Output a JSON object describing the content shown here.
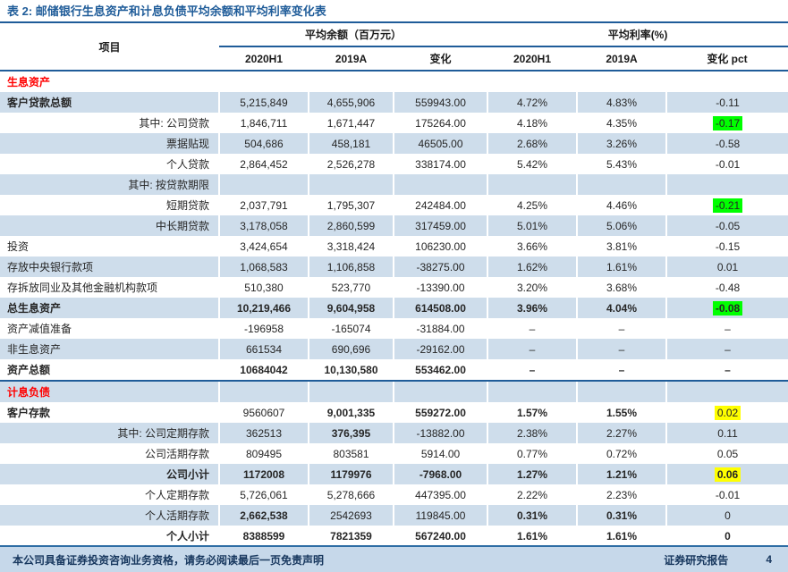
{
  "title": "表 2: 邮储银行生息资产和计息负债平均余额和平均利率变化表",
  "colors": {
    "accent_blue": "#1F5C99",
    "stripe": "#CEDDEB",
    "section_red": "#FF0000",
    "highlight_green": "#00FF00",
    "highlight_yellow": "#FFFF00",
    "footer_bg": "#C6D8EA",
    "footer_text": "#17375E"
  },
  "header": {
    "item_col": "项目",
    "groups": [
      {
        "label": "平均余额（百万元）",
        "cols": [
          "2020H1",
          "2019A",
          "变化"
        ]
      },
      {
        "label": "平均利率(%)",
        "cols": [
          "2020H1",
          "2019A",
          "变化 pct"
        ]
      }
    ]
  },
  "rows": [
    {
      "type": "section",
      "label": "生息资产",
      "align": "left",
      "label_bold": true,
      "cells": [
        {
          "v": ""
        },
        {
          "v": ""
        },
        {
          "v": ""
        },
        {
          "v": ""
        },
        {
          "v": ""
        },
        {
          "v": ""
        }
      ]
    },
    {
      "type": "data",
      "label": "客户贷款总额",
      "align": "left",
      "label_bold": true,
      "cells": [
        {
          "v": "5,215,849"
        },
        {
          "v": "4,655,906"
        },
        {
          "v": "559943.00"
        },
        {
          "v": "4.72%"
        },
        {
          "v": "4.83%"
        },
        {
          "v": "-0.11"
        }
      ]
    },
    {
      "type": "data",
      "label": "其中: 公司贷款",
      "align": "right",
      "label_bold": false,
      "cells": [
        {
          "v": "1,846,711"
        },
        {
          "v": "1,671,447"
        },
        {
          "v": "175264.00"
        },
        {
          "v": "4.18%"
        },
        {
          "v": "4.35%"
        },
        {
          "v": "-0.17",
          "hl": "green"
        }
      ]
    },
    {
      "type": "data",
      "label": "票据贴现",
      "align": "right",
      "label_bold": false,
      "cells": [
        {
          "v": "504,686"
        },
        {
          "v": "458,181"
        },
        {
          "v": "46505.00"
        },
        {
          "v": "2.68%"
        },
        {
          "v": "3.26%"
        },
        {
          "v": "-0.58"
        }
      ]
    },
    {
      "type": "data",
      "label": "个人贷款",
      "align": "right",
      "label_bold": false,
      "cells": [
        {
          "v": "2,864,452"
        },
        {
          "v": "2,526,278"
        },
        {
          "v": "338174.00"
        },
        {
          "v": "5.42%"
        },
        {
          "v": "5.43%"
        },
        {
          "v": "-0.01"
        }
      ]
    },
    {
      "type": "data",
      "label": "其中: 按贷款期限",
      "align": "right",
      "label_bold": false,
      "cells": [
        {
          "v": ""
        },
        {
          "v": ""
        },
        {
          "v": ""
        },
        {
          "v": ""
        },
        {
          "v": ""
        },
        {
          "v": ""
        }
      ]
    },
    {
      "type": "data",
      "label": "短期贷款",
      "align": "right",
      "label_bold": false,
      "cells": [
        {
          "v": "2,037,791"
        },
        {
          "v": "1,795,307"
        },
        {
          "v": "242484.00"
        },
        {
          "v": "4.25%"
        },
        {
          "v": "4.46%"
        },
        {
          "v": "-0.21",
          "hl": "green"
        }
      ]
    },
    {
      "type": "data",
      "label": "中长期贷款",
      "align": "right",
      "label_bold": false,
      "cells": [
        {
          "v": "3,178,058"
        },
        {
          "v": "2,860,599"
        },
        {
          "v": "317459.00"
        },
        {
          "v": "5.01%"
        },
        {
          "v": "5.06%"
        },
        {
          "v": "-0.05"
        }
      ]
    },
    {
      "type": "data",
      "label": "投资",
      "align": "left",
      "label_bold": false,
      "cells": [
        {
          "v": "3,424,654"
        },
        {
          "v": "3,318,424"
        },
        {
          "v": "106230.00"
        },
        {
          "v": "3.66%"
        },
        {
          "v": "3.81%"
        },
        {
          "v": "-0.15"
        }
      ]
    },
    {
      "type": "data",
      "label": "存放中央银行款项",
      "align": "left",
      "label_bold": false,
      "cells": [
        {
          "v": "1,068,583"
        },
        {
          "v": "1,106,858"
        },
        {
          "v": "-38275.00"
        },
        {
          "v": "1.62%"
        },
        {
          "v": "1.61%"
        },
        {
          "v": "0.01"
        }
      ]
    },
    {
      "type": "data",
      "label": "存拆放同业及其他金融机构款项",
      "align": "left",
      "label_bold": false,
      "cells": [
        {
          "v": "510,380"
        },
        {
          "v": "523,770"
        },
        {
          "v": "-13390.00"
        },
        {
          "v": "3.20%"
        },
        {
          "v": "3.68%"
        },
        {
          "v": "-0.48"
        }
      ]
    },
    {
      "type": "data",
      "label": "总生息资产",
      "align": "left",
      "label_bold": true,
      "cells": [
        {
          "v": "10,219,466",
          "b": true
        },
        {
          "v": "9,604,958",
          "b": true
        },
        {
          "v": "614508.00",
          "b": true
        },
        {
          "v": "3.96%",
          "b": true
        },
        {
          "v": "4.04%",
          "b": true
        },
        {
          "v": "-0.08",
          "hl": "green",
          "b": true
        }
      ]
    },
    {
      "type": "data",
      "label": "资产减值准备",
      "align": "left",
      "label_bold": false,
      "cells": [
        {
          "v": "-196958"
        },
        {
          "v": "-165074"
        },
        {
          "v": "-31884.00"
        },
        {
          "v": "–"
        },
        {
          "v": "–"
        },
        {
          "v": "–"
        }
      ]
    },
    {
      "type": "data",
      "label": "非生息资产",
      "align": "left",
      "label_bold": false,
      "cells": [
        {
          "v": "661534"
        },
        {
          "v": "690,696"
        },
        {
          "v": "-29162.00"
        },
        {
          "v": "–"
        },
        {
          "v": "–"
        },
        {
          "v": "–"
        }
      ]
    },
    {
      "type": "data",
      "label": "资产总额",
      "align": "left",
      "label_bold": true,
      "divider": true,
      "cells": [
        {
          "v": "10684042",
          "b": true
        },
        {
          "v": "10,130,580",
          "b": true
        },
        {
          "v": "553462.00",
          "b": true
        },
        {
          "v": "–",
          "b": true
        },
        {
          "v": "–",
          "b": true
        },
        {
          "v": "–",
          "b": true
        }
      ]
    },
    {
      "type": "section",
      "label": "计息负债",
      "align": "left",
      "label_bold": true,
      "cells": [
        {
          "v": ""
        },
        {
          "v": ""
        },
        {
          "v": ""
        },
        {
          "v": ""
        },
        {
          "v": ""
        },
        {
          "v": ""
        }
      ]
    },
    {
      "type": "data",
      "label": "客户存款",
      "align": "left",
      "label_bold": true,
      "cells": [
        {
          "v": "9560607"
        },
        {
          "v": "9,001,335",
          "b": true
        },
        {
          "v": "559272.00",
          "b": true
        },
        {
          "v": "1.57%",
          "b": true
        },
        {
          "v": "1.55%",
          "b": true
        },
        {
          "v": "0.02",
          "hl": "yellow"
        }
      ]
    },
    {
      "type": "data",
      "label": "其中: 公司定期存款",
      "align": "right",
      "label_bold": false,
      "cells": [
        {
          "v": "362513"
        },
        {
          "v": "376,395",
          "b": true
        },
        {
          "v": "-13882.00"
        },
        {
          "v": "2.38%"
        },
        {
          "v": "2.27%"
        },
        {
          "v": "0.11"
        }
      ]
    },
    {
      "type": "data",
      "label": "公司活期存款",
      "align": "right",
      "label_bold": false,
      "cells": [
        {
          "v": "809495"
        },
        {
          "v": "803581"
        },
        {
          "v": "5914.00"
        },
        {
          "v": "0.77%"
        },
        {
          "v": "0.72%"
        },
        {
          "v": "0.05"
        }
      ]
    },
    {
      "type": "data",
      "label": "公司小计",
      "align": "right",
      "label_bold": true,
      "cells": [
        {
          "v": "1172008",
          "b": true
        },
        {
          "v": "1179976",
          "b": true
        },
        {
          "v": "-7968.00",
          "b": true
        },
        {
          "v": "1.27%",
          "b": true
        },
        {
          "v": "1.21%",
          "b": true
        },
        {
          "v": "0.06",
          "hl": "yellow",
          "b": true
        }
      ]
    },
    {
      "type": "data",
      "label": "个人定期存款",
      "align": "right",
      "label_bold": false,
      "cells": [
        {
          "v": "5,726,061"
        },
        {
          "v": "5,278,666"
        },
        {
          "v": "447395.00"
        },
        {
          "v": "2.22%"
        },
        {
          "v": "2.23%"
        },
        {
          "v": "-0.01"
        }
      ]
    },
    {
      "type": "data",
      "label": "个人活期存款",
      "align": "right",
      "label_bold": false,
      "cells": [
        {
          "v": "2,662,538",
          "b": true
        },
        {
          "v": "2542693"
        },
        {
          "v": "119845.00"
        },
        {
          "v": "0.31%",
          "b": true
        },
        {
          "v": "0.31%",
          "b": true
        },
        {
          "v": "0"
        }
      ]
    },
    {
      "type": "data",
      "label": "个人小计",
      "align": "right",
      "label_bold": true,
      "cells": [
        {
          "v": "8388599",
          "b": true
        },
        {
          "v": "7821359",
          "b": true
        },
        {
          "v": "567240.00",
          "b": true
        },
        {
          "v": "1.61%",
          "b": true
        },
        {
          "v": "1.61%",
          "b": true
        },
        {
          "v": "0",
          "b": true
        }
      ]
    }
  ],
  "footer": {
    "left": "本公司具备证券投资咨询业务资格，请务必阅读最后一页免责声明",
    "right": "证券研究报告",
    "page": "4"
  }
}
